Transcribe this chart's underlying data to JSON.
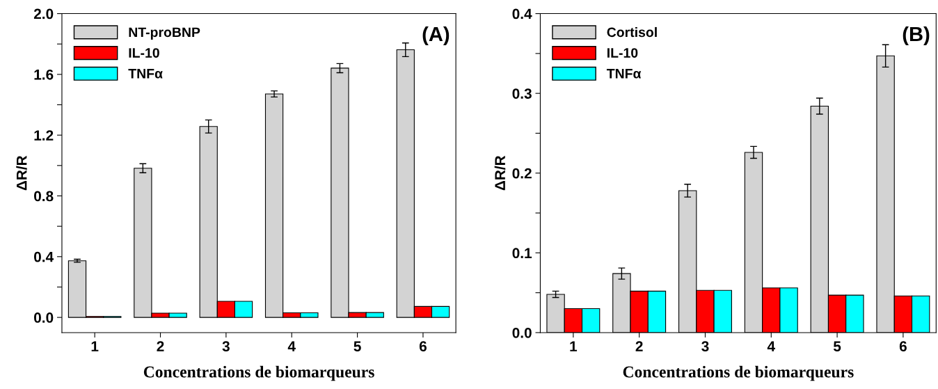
{
  "chart_data": [
    {
      "type": "bar",
      "xlabel": "Concentrations de biomarqueurs",
      "ylabel": "ΔR/R",
      "annotations": [
        "(A)"
      ],
      "categories": [
        "1",
        "2",
        "3",
        "4",
        "5",
        "6"
      ],
      "series": [
        {
          "name": "NT-proBNP",
          "color": "#d3d3d3",
          "values": [
            0.373,
            0.982,
            1.257,
            1.471,
            1.641,
            1.762
          ],
          "errors": [
            0.01,
            0.03,
            0.043,
            0.02,
            0.03,
            0.045
          ]
        },
        {
          "name": "IL-10",
          "color": "#ff0000",
          "values": [
            0.006,
            0.028,
            0.106,
            0.03,
            0.032,
            0.072
          ]
        },
        {
          "name": "TNFα",
          "color": "#00ffff",
          "values": [
            0.006,
            0.028,
            0.106,
            0.03,
            0.032,
            0.072
          ]
        }
      ],
      "ylim": [
        -0.1,
        2.0
      ],
      "yticks": [
        {
          "value": 0,
          "label": "0.0"
        },
        {
          "value": 0.2,
          "label": null
        },
        0.4,
        {
          "value": 0.6,
          "label": null
        },
        0.8,
        {
          "value": 1.0,
          "label": null
        },
        1.2,
        {
          "value": 1.4,
          "label": null
        },
        1.6,
        {
          "value": 1.8,
          "label": null
        },
        {
          "value": 2,
          "label": "2.0"
        }
      ],
      "legend": "top left",
      "grid": false
    },
    {
      "type": "bar",
      "xlabel": "Concentrations de biomarqueurs",
      "ylabel": "ΔR/R",
      "annotations": [
        "(B)"
      ],
      "categories": [
        "1",
        "2",
        "3",
        "4",
        "5",
        "6"
      ],
      "series": [
        {
          "name": "Cortisol",
          "color": "#d3d3d3",
          "values": [
            0.048,
            0.074,
            0.178,
            0.226,
            0.284,
            0.347
          ],
          "errors": [
            0.004,
            0.007,
            0.008,
            0.0075,
            0.01,
            0.014
          ]
        },
        {
          "name": "IL-10",
          "color": "#ff0000",
          "values": [
            0.03,
            0.052,
            0.053,
            0.056,
            0.047,
            0.046
          ]
        },
        {
          "name": "TNFα",
          "color": "#00ffff",
          "values": [
            0.03,
            0.052,
            0.053,
            0.056,
            0.047,
            0.046
          ]
        }
      ],
      "ylim": [
        0,
        0.4
      ],
      "yticks": [
        {
          "value": 0,
          "label": "0.0"
        },
        {
          "value": 0.05,
          "label": null
        },
        0.1,
        {
          "value": 0.15,
          "label": null
        },
        0.2,
        {
          "value": 0.25,
          "label": null
        },
        0.3,
        {
          "value": 0.35,
          "label": null
        },
        0.4
      ],
      "legend": "top left",
      "grid": false
    }
  ]
}
